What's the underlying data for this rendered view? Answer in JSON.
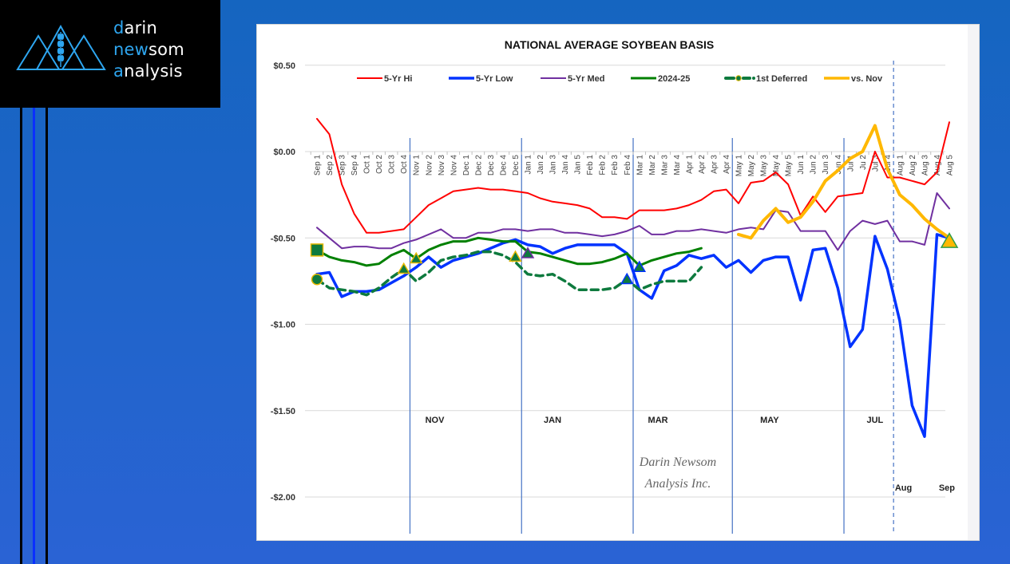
{
  "logo": {
    "line1_hl": "d",
    "line1_rest": "arin",
    "line2_hl": "ne",
    "line2_mid": "w",
    "line2_rest": "som",
    "line3_hl": "a",
    "line3_rest": "nalysis",
    "icon": "mountain-wheat-icon"
  },
  "colors": {
    "background_top": "#1565C0",
    "background_bottom": "#2A63D4",
    "logo_accent": "#2EA6F0",
    "hi": "#FF0000",
    "low": "#0033FF",
    "med": "#7030A0",
    "current": "#008000",
    "deferred": "#0E7A3E",
    "vs_nov": "#FFB800",
    "separator": "#4472C4"
  },
  "chart_data": {
    "type": "line",
    "title": "NATIONAL AVERAGE SOYBEAN BASIS",
    "xlabel": "",
    "ylabel": "",
    "ylim": [
      -2.0,
      0.5
    ],
    "yticks": [
      0.5,
      0.0,
      -0.5,
      -1.0,
      -1.5,
      -2.0
    ],
    "ytick_labels": [
      "$0.50",
      "$0.00",
      "-$0.50",
      "-$1.00",
      "-$1.50",
      "-$2.00"
    ],
    "grid": true,
    "legend_position": "top",
    "categories": [
      "Sep 1",
      "Sep 2",
      "Sep 3",
      "Sep 4",
      "Oct 1",
      "Oct 2",
      "Oct 3",
      "Oct 4",
      "Nov 1",
      "Nov 2",
      "Nov 3",
      "Nov 4",
      "Dec 1",
      "Dec 2",
      "Dec 3",
      "Dec 4",
      "Dec 5",
      "Jan 1",
      "Jan 2",
      "Jan 3",
      "Jan 4",
      "Jan 5",
      "Feb 1",
      "Feb 2",
      "Feb 3",
      "Feb 4",
      "Mar 1",
      "Mar 2",
      "Mar 3",
      "Mar 4",
      "Apr 1",
      "Apr 2",
      "Apr 3",
      "Apr 4",
      "May 1",
      "May 2",
      "May 3",
      "May 4",
      "May 5",
      "Jun 1",
      "Jun 2",
      "Jun 3",
      "Jun 4",
      "Jul 1",
      "Ju 2",
      "Jul 3",
      "Jul 4",
      "Aug 1",
      "Aug 2",
      "Aug 3",
      "Aug 4",
      "Aug 5"
    ],
    "month_labels": [
      {
        "label": "NOV",
        "at_index": 9.5,
        "row": "low"
      },
      {
        "label": "JAN",
        "at_index": 19,
        "row": "low"
      },
      {
        "label": "MAR",
        "at_index": 27.5,
        "row": "low"
      },
      {
        "label": "MAY",
        "at_index": 36.5,
        "row": "low"
      },
      {
        "label": "JUL",
        "at_index": 45,
        "row": "low"
      },
      {
        "label": "Aug",
        "at_index": 47.3,
        "row": "bottom"
      },
      {
        "label": "Sep",
        "at_index": 50.8,
        "row": "bottom"
      }
    ],
    "separators": [
      {
        "after_index": 7.5,
        "style": "solid"
      },
      {
        "after_index": 16.5,
        "style": "solid"
      },
      {
        "after_index": 25.5,
        "style": "solid"
      },
      {
        "after_index": 33.5,
        "style": "solid"
      },
      {
        "after_index": 42.5,
        "style": "solid"
      },
      {
        "after_index": 46.5,
        "style": "dashed"
      }
    ],
    "series": [
      {
        "name": "5-Yr Hi",
        "key": "hi",
        "start_index": 0,
        "dash": false,
        "width": 2,
        "values": [
          0.19,
          0.1,
          -0.19,
          -0.36,
          -0.47,
          -0.47,
          -0.46,
          -0.45,
          -0.38,
          -0.31,
          -0.27,
          -0.23,
          -0.22,
          -0.21,
          -0.22,
          -0.22,
          -0.23,
          -0.24,
          -0.27,
          -0.29,
          -0.3,
          -0.31,
          -0.33,
          -0.38,
          -0.38,
          -0.39,
          -0.34,
          -0.34,
          -0.34,
          -0.33,
          -0.31,
          -0.28,
          -0.23,
          -0.22,
          -0.3,
          -0.18,
          -0.17,
          -0.12,
          -0.19,
          -0.37,
          -0.26,
          -0.35,
          -0.26,
          -0.25,
          -0.24,
          0.0,
          -0.15,
          -0.15,
          -0.17,
          -0.19,
          -0.12,
          0.17
        ]
      },
      {
        "name": "5-Yr Low",
        "key": "low",
        "start_index": 0,
        "dash": false,
        "width": 3.5,
        "values": [
          -0.71,
          -0.7,
          -0.84,
          -0.81,
          -0.81,
          -0.8,
          -0.76,
          -0.72,
          -0.67,
          -0.61,
          -0.67,
          -0.63,
          -0.61,
          -0.59,
          -0.56,
          -0.53,
          -0.51,
          -0.54,
          -0.55,
          -0.59,
          -0.56,
          -0.54,
          -0.54,
          -0.54,
          -0.54,
          -0.59,
          -0.8,
          -0.85,
          -0.69,
          -0.66,
          -0.6,
          -0.62,
          -0.6,
          -0.67,
          -0.63,
          -0.7,
          -0.63,
          -0.61,
          -0.61,
          -0.86,
          -0.57,
          -0.56,
          -0.79,
          -1.13,
          -1.03,
          -0.49,
          -0.68,
          -0.98,
          -1.47,
          -1.65,
          -0.48,
          -0.5
        ]
      },
      {
        "name": "5-Yr Med",
        "key": "med",
        "start_index": 0,
        "dash": false,
        "width": 2,
        "values": [
          -0.44,
          -0.5,
          -0.56,
          -0.55,
          -0.55,
          -0.56,
          -0.56,
          -0.53,
          -0.51,
          -0.48,
          -0.45,
          -0.5,
          -0.5,
          -0.47,
          -0.47,
          -0.45,
          -0.45,
          -0.46,
          -0.45,
          -0.45,
          -0.47,
          -0.47,
          -0.48,
          -0.49,
          -0.48,
          -0.46,
          -0.43,
          -0.48,
          -0.48,
          -0.46,
          -0.46,
          -0.45,
          -0.46,
          -0.47,
          -0.45,
          -0.44,
          -0.45,
          -0.34,
          -0.35,
          -0.46,
          -0.46,
          -0.46,
          -0.57,
          -0.46,
          -0.4,
          -0.42,
          -0.4,
          -0.52,
          -0.52,
          -0.54,
          -0.24,
          -0.33
        ]
      },
      {
        "name": "2024-25",
        "key": "current",
        "start_index": 0,
        "dash": false,
        "width": 3,
        "values": [
          -0.57,
          -0.61,
          -0.63,
          -0.64,
          -0.66,
          -0.65,
          -0.6,
          -0.57,
          -0.62,
          -0.57,
          -0.54,
          -0.52,
          -0.52,
          -0.5,
          -0.51,
          -0.52,
          -0.52,
          -0.58,
          -0.59,
          -0.61,
          -0.63,
          -0.65,
          -0.65,
          -0.64,
          -0.62,
          -0.59,
          -0.66,
          -0.63,
          -0.61,
          -0.59,
          -0.58,
          -0.56
        ]
      },
      {
        "name": "1st Deferred",
        "key": "deferred",
        "start_index": 0,
        "dash": true,
        "width": 3.5,
        "values": [
          -0.74,
          -0.79,
          -0.8,
          -0.81,
          -0.83,
          -0.79,
          -0.73,
          -0.68,
          -0.75,
          -0.7,
          -0.63,
          -0.61,
          -0.6,
          -0.58,
          -0.58,
          -0.6,
          -0.64,
          -0.71,
          -0.72,
          -0.71,
          -0.75,
          -0.8,
          -0.8,
          -0.8,
          -0.79,
          -0.74,
          -0.8,
          -0.77,
          -0.75,
          -0.75,
          -0.75,
          -0.67
        ]
      },
      {
        "name": "vs. Nov",
        "key": "vs_nov",
        "start_index": 34,
        "dash": false,
        "width": 4,
        "values": [
          -0.48,
          -0.5,
          -0.4,
          -0.33,
          -0.41,
          -0.38,
          -0.29,
          -0.17,
          -0.11,
          -0.04,
          0.0,
          0.15,
          -0.1,
          -0.25,
          -0.31,
          -0.39,
          -0.45,
          -0.5
        ]
      }
    ],
    "markers": [
      {
        "shape": "square",
        "index": 0,
        "value": -0.57,
        "fill": "#0E7A3E",
        "stroke": "#E5B800"
      },
      {
        "shape": "circle",
        "index": 0,
        "value": -0.74,
        "fill": "#0E7A3E",
        "stroke": "#E5B800"
      },
      {
        "shape": "triangle",
        "index": 7,
        "value": -0.68,
        "fill": "#0E7A3E",
        "stroke": "#E5B800"
      },
      {
        "shape": "triangle",
        "index": 8,
        "value": -0.62,
        "fill": "#0E7A3E",
        "stroke": "#E5B800"
      },
      {
        "shape": "triangle",
        "index": 16,
        "value": -0.61,
        "fill": "#0E7A3E",
        "stroke": "#E5B800"
      },
      {
        "shape": "triangle",
        "index": 17,
        "value": -0.59,
        "fill": "#0E7A3E",
        "stroke": "#7030A0"
      },
      {
        "shape": "triangle",
        "index": 25,
        "value": -0.74,
        "fill": "#0E7A3E",
        "stroke": "#0033FF"
      },
      {
        "shape": "triangle",
        "index": 26,
        "value": -0.67,
        "fill": "#0E7A3E",
        "stroke": "#0033FF"
      },
      {
        "shape": "triangle",
        "index": 51,
        "value": -0.52,
        "fill": "#FFB800",
        "stroke": "#2E9E4A"
      }
    ],
    "annotations": [
      "Darin Newsom",
      "Analysis Inc."
    ]
  }
}
